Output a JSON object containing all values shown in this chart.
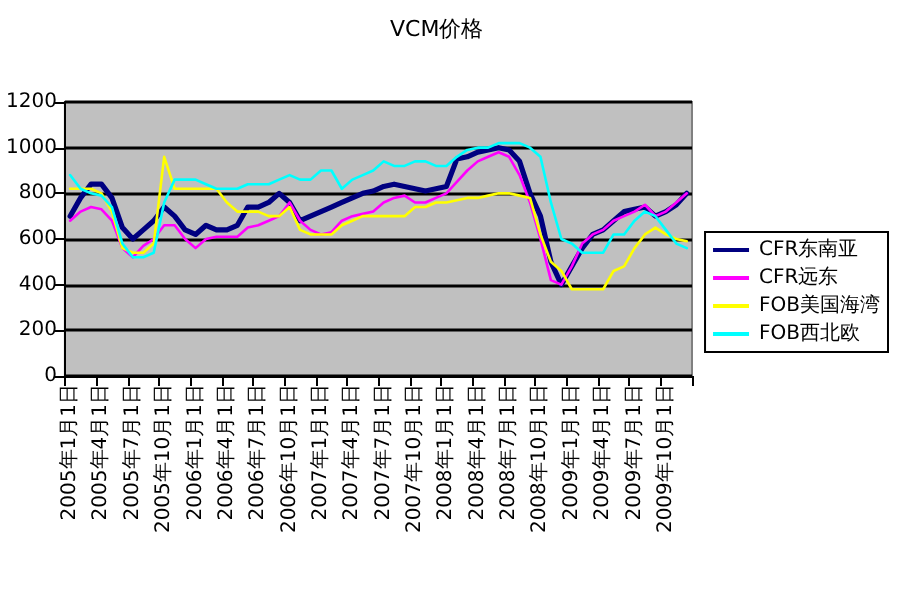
{
  "chart_data": {
    "type": "line",
    "title": "VCM价格",
    "categories": [
      "2005年1月1日",
      null,
      null,
      "2005年4月1日",
      null,
      null,
      "2005年7月1日",
      null,
      null,
      "2005年10月1日",
      null,
      null,
      "2006年1月1日",
      null,
      null,
      "2006年4月1日",
      null,
      null,
      "2006年7月1日",
      null,
      null,
      "2006年10月1日",
      null,
      null,
      "2007年1月1日",
      null,
      null,
      "2007年4月1日",
      null,
      null,
      "2007年7月1日",
      null,
      null,
      "2007年10月1日",
      null,
      null,
      "2008年1月1日",
      null,
      null,
      "2008年4月1日",
      null,
      null,
      "2008年7月1日",
      null,
      null,
      "2008年10月1日",
      null,
      null,
      "2009年1月1日",
      null,
      null,
      "2009年4月1日",
      null,
      null,
      "2009年7月1日",
      null,
      null,
      "2009年10月1日",
      null,
      null
    ],
    "series": [
      {
        "name": "CFR东南亚",
        "color": "#000080",
        "values": [
          700,
          780,
          840,
          840,
          780,
          650,
          600,
          640,
          680,
          740,
          700,
          640,
          620,
          660,
          640,
          640,
          660,
          740,
          740,
          760,
          800,
          760,
          680,
          700,
          720,
          740,
          760,
          780,
          800,
          810,
          830,
          840,
          830,
          820,
          810,
          820,
          830,
          950,
          960,
          980,
          990,
          1000,
          990,
          940,
          800,
          700,
          500,
          400,
          480,
          560,
          620,
          640,
          680,
          720,
          730,
          740,
          700,
          720,
          750,
          800
        ]
      },
      {
        "name": "CFR远东",
        "color": "#ff00ff",
        "values": [
          680,
          720,
          740,
          730,
          680,
          560,
          520,
          570,
          600,
          660,
          660,
          600,
          560,
          600,
          610,
          610,
          610,
          650,
          660,
          680,
          700,
          760,
          680,
          640,
          620,
          630,
          680,
          700,
          710,
          720,
          760,
          780,
          790,
          760,
          760,
          780,
          800,
          850,
          900,
          940,
          960,
          980,
          960,
          880,
          760,
          600,
          420,
          400,
          480,
          580,
          620,
          640,
          680,
          700,
          720,
          750,
          700,
          720,
          760,
          800
        ]
      },
      {
        "name": "FOB美国海湾",
        "color": "#ffff00",
        "values": [
          820,
          820,
          820,
          800,
          720,
          560,
          540,
          540,
          580,
          960,
          820,
          820,
          820,
          820,
          820,
          760,
          720,
          720,
          720,
          700,
          700,
          740,
          640,
          620,
          620,
          620,
          660,
          680,
          700,
          700,
          700,
          700,
          700,
          740,
          740,
          760,
          760,
          770,
          780,
          780,
          790,
          800,
          800,
          790,
          780,
          620,
          500,
          460,
          380,
          380,
          380,
          380,
          460,
          480,
          560,
          620,
          650,
          620,
          600,
          590
        ]
      },
      {
        "name": "FOB西北欧",
        "color": "#00ffff",
        "values": [
          880,
          820,
          800,
          790,
          740,
          580,
          520,
          520,
          540,
          760,
          860,
          860,
          860,
          840,
          820,
          820,
          820,
          840,
          840,
          840,
          860,
          880,
          860,
          860,
          900,
          900,
          820,
          860,
          880,
          900,
          940,
          920,
          920,
          940,
          940,
          920,
          920,
          960,
          990,
          1000,
          1000,
          1020,
          1020,
          1020,
          1000,
          960,
          760,
          600,
          580,
          540,
          540,
          540,
          620,
          620,
          680,
          720,
          700,
          640,
          580,
          560
        ]
      }
    ],
    "ylim": [
      0,
      1200
    ],
    "yticks": [
      0,
      200,
      400,
      600,
      800,
      1000,
      1200
    ],
    "grid": "y",
    "legend": "right",
    "marker": "none",
    "line_style": "solid"
  }
}
